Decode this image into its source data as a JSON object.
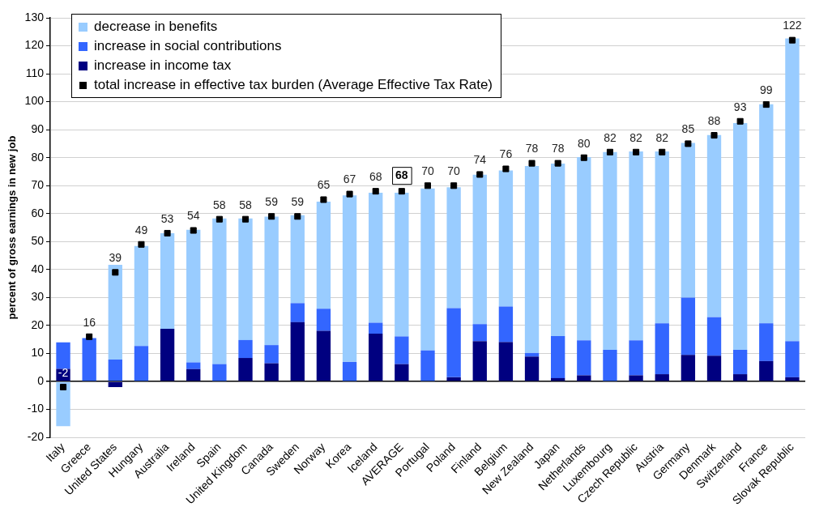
{
  "chart_data": {
    "type": "bar",
    "stacked": true,
    "ylabel": "percent of gross earnings in new job",
    "categories": [
      "Italy",
      "Greece",
      "United States",
      "Hungary",
      "Australia",
      "Ireland",
      "Spain",
      "United Kingdom",
      "Canada",
      "Sweden",
      "Norway",
      "Korea",
      "Iceland",
      "AVERAGE",
      "Portugal",
      "Poland",
      "Finland",
      "Belgium",
      "New Zealand",
      "Japan",
      "Netherlands",
      "Luxembourg",
      "Czech Republic",
      "Austria",
      "Germany",
      "Denmark",
      "Switzerland",
      "France",
      "Slovak Republic"
    ],
    "series": [
      {
        "name": "increase in income tax",
        "color": "#000080",
        "values": [
          4.5,
          null,
          -2,
          null,
          18.8,
          4.4,
          null,
          8.4,
          6.5,
          21.2,
          18.1,
          null,
          17.1,
          6.2,
          null,
          1.5,
          14.4,
          14.1,
          8.9,
          1.2,
          2.2,
          null,
          2.2,
          2.6,
          9.5,
          9.2,
          2.6,
          7.3,
          1.5
        ]
      },
      {
        "name": "increase in social contributions",
        "color": "#3366ff",
        "values": [
          9.5,
          15.5,
          7.8,
          12.7,
          null,
          2.4,
          6.2,
          6.4,
          6.5,
          6.8,
          7.9,
          7,
          3.9,
          9.9,
          11.1,
          24.7,
          6.1,
          12.7,
          1.3,
          15,
          12.5,
          11.3,
          12.5,
          18.2,
          20.5,
          13.8,
          8.7,
          13.5,
          12.9
        ]
      },
      {
        "name": "decrease in benefits",
        "color": "#99ccff",
        "values": [
          -16,
          null,
          33.9,
          35.7,
          34.2,
          47.4,
          52.1,
          43.5,
          45.9,
          31.4,
          38.3,
          59.5,
          46.5,
          51.4,
          57.9,
          43.2,
          53.4,
          48.6,
          66.8,
          61.7,
          65.5,
          70.7,
          67.5,
          61.4,
          55.3,
          65.1,
          81.1,
          78.3,
          108.2
        ]
      },
      {
        "name": "total increase in effective tax burden (Average Effective Tax Rate)",
        "type": "scatter",
        "color": "#000000",
        "marker": "square",
        "x": [
          "Italy",
          "Greece",
          "United States",
          "Hungary",
          "Australia",
          "Ireland",
          "Spain",
          "United Kingdom",
          "Canada",
          "Sweden",
          "Norway",
          "Korea",
          "Iceland",
          "AVERAGE",
          "Portugal",
          "Poland",
          "Finland",
          "Belgium",
          "New Zealand",
          "Japan",
          "Netherlands",
          "Luxembourg",
          "Czech Republic",
          "Austria",
          "Germany",
          "Denmark",
          "Switzerland",
          "France",
          "Slovak Republic"
        ],
        "values": [
          -2,
          16,
          39,
          49,
          53,
          54,
          58,
          58,
          59,
          59,
          65,
          67,
          68,
          68,
          70,
          70,
          74,
          76,
          78,
          78,
          80,
          82,
          82,
          82,
          85,
          88,
          93,
          99,
          122
        ],
        "value_labels": [
          "-2",
          "16",
          "39",
          "49",
          "53",
          "54",
          "58",
          "58",
          "59",
          "59",
          "65",
          "67",
          "68",
          null,
          "70",
          "70",
          "74",
          "76",
          "78",
          "78",
          "80",
          "82",
          "82",
          "82",
          "85",
          "88",
          "93",
          "99",
          "122"
        ]
      }
    ],
    "ylim": [
      -20,
      130
    ],
    "yticks": [
      -20,
      -10,
      0,
      10,
      20,
      30,
      40,
      50,
      60,
      70,
      80,
      90,
      100,
      110,
      120,
      130
    ],
    "grid": "y",
    "legend": "top left",
    "annotations": [
      {
        "text": "68",
        "x": "AVERAGE",
        "y": 68
      }
    ]
  }
}
